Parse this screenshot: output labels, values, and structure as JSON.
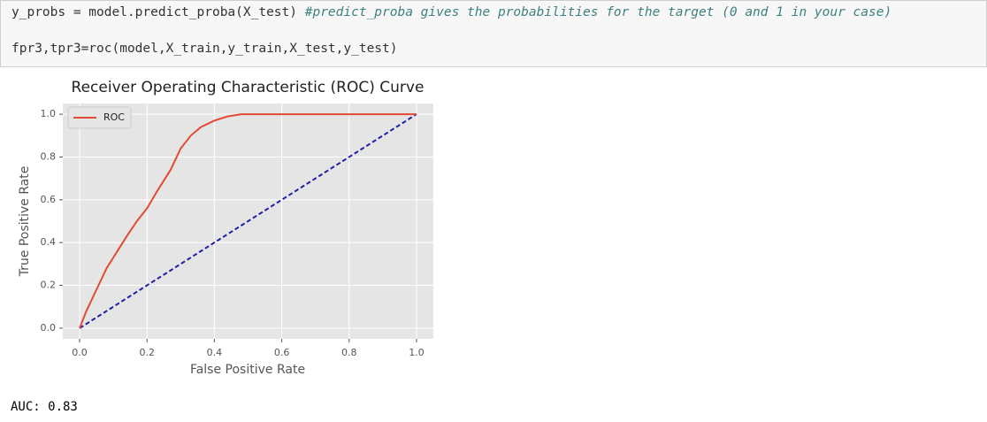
{
  "code": {
    "lines": [
      {
        "code": "y_probs = model.predict_proba(X_test) ",
        "comment": "#predict_proba gives the probabilities for the target (0 and 1 in your case)"
      },
      {
        "code": "fpr3,tpr3=roc(model,X_train,y_train,X_test,y_test)"
      }
    ]
  },
  "output": "AUC: 0.83",
  "chart_data": {
    "type": "line",
    "title": "Receiver Operating Characteristic (ROC) Curve",
    "x_label": "False Positive Rate",
    "y_label": "True Positive Rate",
    "x": [
      0,
      0.02,
      0.05,
      0.08,
      0.1,
      0.14,
      0.17,
      0.2,
      0.23,
      0.27,
      0.3,
      0.33,
      0.36,
      0.4,
      0.44,
      0.48,
      1
    ],
    "series": [
      {
        "name": "ROC",
        "color": "#e24a33",
        "values": [
          0,
          0.08,
          0.18,
          0.28,
          0.33,
          0.43,
          0.5,
          0.56,
          0.64,
          0.74,
          0.84,
          0.9,
          0.94,
          0.97,
          0.99,
          1,
          1
        ]
      }
    ],
    "reference_line": {
      "x": [
        0,
        1
      ],
      "values": [
        0,
        1
      ],
      "color": "#1f1fa8",
      "dashed": true
    },
    "xlim": [
      -0.05,
      1.05
    ],
    "ylim": [
      -0.05,
      1.05
    ],
    "xticks": [
      {
        "value": 0,
        "label": "0.0"
      },
      0.2,
      0.4,
      0.6,
      0.8,
      {
        "value": 1,
        "label": "1.0"
      }
    ],
    "yticks": [
      {
        "value": 0,
        "label": "0.0"
      },
      0.2,
      0.4,
      0.6,
      0.8,
      {
        "value": 1,
        "label": "1.0"
      }
    ],
    "grid": true,
    "legend": "upper-left",
    "background": "#e5e5e5"
  }
}
